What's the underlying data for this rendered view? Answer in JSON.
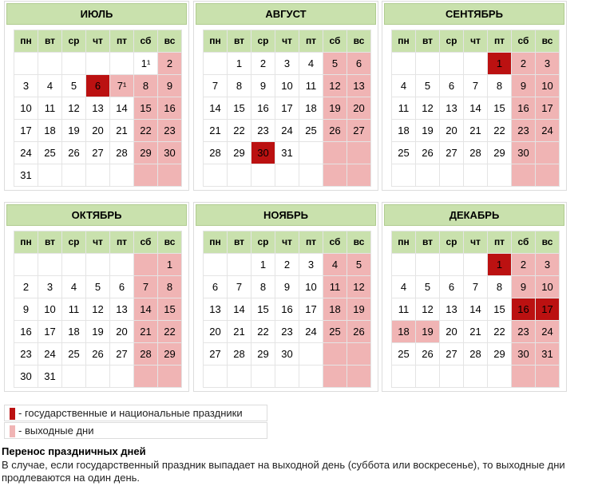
{
  "weekdays": [
    "пн",
    "вт",
    "ср",
    "чт",
    "пт",
    "сб",
    "вс"
  ],
  "months": [
    {
      "title": "ИЮЛЬ",
      "rows": [
        [
          "",
          "",
          "",
          "",
          "",
          "1¹",
          "2"
        ],
        [
          "3",
          "4",
          "5",
          "6",
          "7¹",
          "8",
          "9"
        ],
        [
          "10",
          "11",
          "12",
          "13",
          "14",
          "15",
          "16"
        ],
        [
          "17",
          "18",
          "19",
          "20",
          "21",
          "22",
          "23"
        ],
        [
          "24",
          "25",
          "26",
          "27",
          "28",
          "29",
          "30"
        ],
        [
          "31",
          "",
          "",
          "",
          "",
          "",
          ""
        ]
      ],
      "holidays": [
        "6"
      ],
      "extra_off": [
        "7¹"
      ],
      "plain_weekend": [
        "1¹"
      ]
    },
    {
      "title": "АВГУСТ",
      "rows": [
        [
          "",
          "1",
          "2",
          "3",
          "4",
          "5",
          "6"
        ],
        [
          "7",
          "8",
          "9",
          "10",
          "11",
          "12",
          "13"
        ],
        [
          "14",
          "15",
          "16",
          "17",
          "18",
          "19",
          "20"
        ],
        [
          "21",
          "22",
          "23",
          "24",
          "25",
          "26",
          "27"
        ],
        [
          "28",
          "29",
          "30",
          "31",
          "",
          "",
          ""
        ],
        [
          "",
          "",
          "",
          "",
          "",
          "",
          ""
        ]
      ],
      "holidays": [
        "30"
      ],
      "extra_off": [],
      "plain_weekend": []
    },
    {
      "title": "СЕНТЯБРЬ",
      "rows": [
        [
          "",
          "",
          "",
          "",
          "1",
          "2",
          "3"
        ],
        [
          "4",
          "5",
          "6",
          "7",
          "8",
          "9",
          "10"
        ],
        [
          "11",
          "12",
          "13",
          "14",
          "15",
          "16",
          "17"
        ],
        [
          "18",
          "19",
          "20",
          "21",
          "22",
          "23",
          "24"
        ],
        [
          "25",
          "26",
          "27",
          "28",
          "29",
          "30",
          ""
        ],
        [
          "",
          "",
          "",
          "",
          "",
          "",
          ""
        ]
      ],
      "holidays": [
        "1"
      ],
      "extra_off": [],
      "plain_weekend": []
    },
    {
      "title": "ОКТЯБРЬ",
      "rows": [
        [
          "",
          "",
          "",
          "",
          "",
          "",
          "1"
        ],
        [
          "2",
          "3",
          "4",
          "5",
          "6",
          "7",
          "8"
        ],
        [
          "9",
          "10",
          "11",
          "12",
          "13",
          "14",
          "15"
        ],
        [
          "16",
          "17",
          "18",
          "19",
          "20",
          "21",
          "22"
        ],
        [
          "23",
          "24",
          "25",
          "26",
          "27",
          "28",
          "29"
        ],
        [
          "30",
          "31",
          "",
          "",
          "",
          "",
          ""
        ]
      ],
      "holidays": [],
      "extra_off": [],
      "plain_weekend": []
    },
    {
      "title": "НОЯБРЬ",
      "rows": [
        [
          "",
          "",
          "1",
          "2",
          "3",
          "4",
          "5"
        ],
        [
          "6",
          "7",
          "8",
          "9",
          "10",
          "11",
          "12"
        ],
        [
          "13",
          "14",
          "15",
          "16",
          "17",
          "18",
          "19"
        ],
        [
          "20",
          "21",
          "22",
          "23",
          "24",
          "25",
          "26"
        ],
        [
          "27",
          "28",
          "29",
          "30",
          "",
          "",
          ""
        ],
        [
          "",
          "",
          "",
          "",
          "",
          "",
          ""
        ]
      ],
      "holidays": [],
      "extra_off": [],
      "plain_weekend": []
    },
    {
      "title": "ДЕКАБРЬ",
      "rows": [
        [
          "",
          "",
          "",
          "",
          "1",
          "2",
          "3"
        ],
        [
          "4",
          "5",
          "6",
          "7",
          "8",
          "9",
          "10"
        ],
        [
          "11",
          "12",
          "13",
          "14",
          "15",
          "16",
          "17"
        ],
        [
          "18",
          "19",
          "20",
          "21",
          "22",
          "23",
          "24"
        ],
        [
          "25",
          "26",
          "27",
          "28",
          "29",
          "30",
          "31"
        ],
        [
          "",
          "",
          "",
          "",
          "",
          "",
          ""
        ]
      ],
      "holidays": [
        "1",
        "16",
        "17"
      ],
      "extra_off": [
        "18",
        "19"
      ],
      "plain_weekend": []
    }
  ],
  "legend": {
    "holiday_label": "- государственные и национальные праздники",
    "weekend_label": "- выходные дни"
  },
  "colors": {
    "holiday": "#bb1111",
    "weekend": "#f0b4b4",
    "header": "#c9e1ad"
  },
  "note": {
    "title": "Перенос праздничных дней",
    "text": "В случае, если государственный праздник выпадает на выходной день (суббота или воскресенье), то выходные дни продлеваются на один день."
  }
}
